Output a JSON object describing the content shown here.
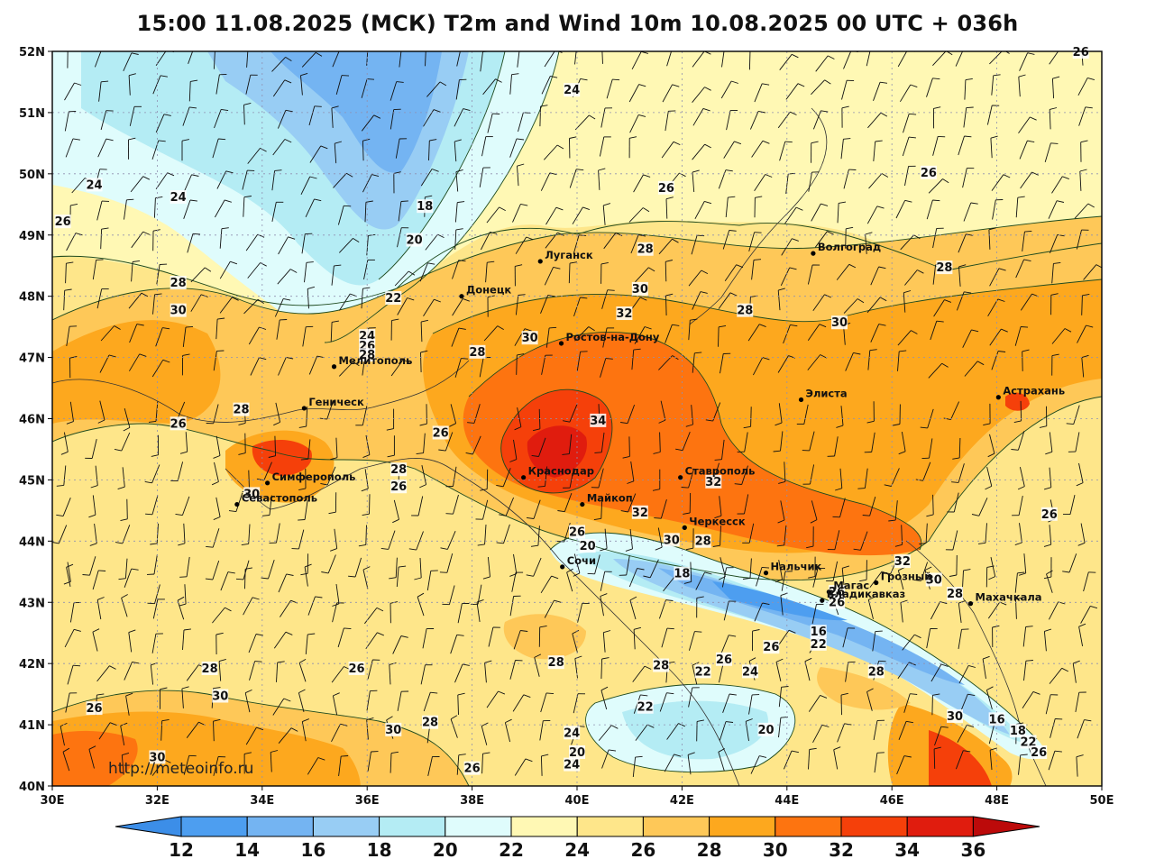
{
  "title": "15:00 11.08.2025 (МСК) T2m and Wind 10m 10.08.2025 00 UTC + 036h",
  "watermark": "http://meteoinfo.ru",
  "axes": {
    "lat_labels": [
      "52N",
      "51N",
      "50N",
      "49N",
      "48N",
      "47N",
      "46N",
      "45N",
      "44N",
      "43N",
      "42N",
      "41N",
      "40N"
    ],
    "lon_labels": [
      "30E",
      "32E",
      "34E",
      "36E",
      "38E",
      "40E",
      "42E",
      "44E",
      "46E",
      "48E",
      "50E"
    ]
  },
  "colorbar": {
    "labels": [
      "12",
      "14",
      "16",
      "18",
      "20",
      "22",
      "24",
      "26",
      "28",
      "30",
      "32",
      "34",
      "36"
    ],
    "colors": [
      "#3c8ee8",
      "#4d9ef0",
      "#74b4f2",
      "#98cdf4",
      "#b4ecf4",
      "#dffcfc",
      "#fff8b4",
      "#fee68a",
      "#fec858",
      "#fda81e",
      "#fd7410",
      "#f5400a",
      "#e01c0e",
      "#bc0a0a"
    ]
  },
  "cities": [
    {
      "name": "Луганск",
      "lon": 39.3,
      "lat": 48.57
    },
    {
      "name": "Донецк",
      "lon": 37.8,
      "lat": 48.0
    },
    {
      "name": "Волгоград",
      "lon": 44.5,
      "lat": 48.7
    },
    {
      "name": "Ростов-на-Дону",
      "lon": 39.7,
      "lat": 47.23
    },
    {
      "name": "Мелитополь",
      "lon": 35.37,
      "lat": 46.85
    },
    {
      "name": "Элиста",
      "lon": 44.27,
      "lat": 46.31
    },
    {
      "name": "Астрахань",
      "lon": 48.03,
      "lat": 46.35
    },
    {
      "name": "Геническ",
      "lon": 34.8,
      "lat": 46.17
    },
    {
      "name": "Краснодар",
      "lon": 38.98,
      "lat": 45.04
    },
    {
      "name": "Ставрополь",
      "lon": 41.97,
      "lat": 45.04
    },
    {
      "name": "Симферополь",
      "lon": 34.1,
      "lat": 44.95
    },
    {
      "name": "Севастополь",
      "lon": 33.52,
      "lat": 44.6
    },
    {
      "name": "Майкоп",
      "lon": 40.1,
      "lat": 44.6
    },
    {
      "name": "Черкесск",
      "lon": 42.05,
      "lat": 44.22
    },
    {
      "name": "Сочи",
      "lon": 39.72,
      "lat": 43.58
    },
    {
      "name": "Нальчик",
      "lon": 43.6,
      "lat": 43.48
    },
    {
      "name": "Магас",
      "lon": 44.8,
      "lat": 43.17
    },
    {
      "name": "Грозный",
      "lon": 45.7,
      "lat": 43.32
    },
    {
      "name": "Владикавказ",
      "lon": 44.67,
      "lat": 43.03
    },
    {
      "name": "Махачкала",
      "lon": 47.5,
      "lat": 42.98
    }
  ],
  "contour_labels": [
    {
      "t": "24",
      "lon": 39.9,
      "lat": 51.35
    },
    {
      "t": "26",
      "lon": 49.6,
      "lat": 51.97
    },
    {
      "t": "26",
      "lon": 46.7,
      "lat": 50.0
    },
    {
      "t": "24",
      "lon": 30.8,
      "lat": 49.8
    },
    {
      "t": "24",
      "lon": 32.4,
      "lat": 49.6
    },
    {
      "t": "26",
      "lon": 30.2,
      "lat": 49.2
    },
    {
      "t": "18",
      "lon": 37.1,
      "lat": 49.45
    },
    {
      "t": "20",
      "lon": 36.9,
      "lat": 48.9
    },
    {
      "t": "26",
      "lon": 41.7,
      "lat": 49.75
    },
    {
      "t": "28",
      "lon": 41.3,
      "lat": 48.75
    },
    {
      "t": "28",
      "lon": 47.0,
      "lat": 48.45
    },
    {
      "t": "22",
      "lon": 36.5,
      "lat": 47.95
    },
    {
      "t": "28",
      "lon": 32.4,
      "lat": 48.2
    },
    {
      "t": "30",
      "lon": 32.4,
      "lat": 47.75
    },
    {
      "t": "30",
      "lon": 41.2,
      "lat": 48.1
    },
    {
      "t": "32",
      "lon": 40.9,
      "lat": 47.7
    },
    {
      "t": "28",
      "lon": 43.2,
      "lat": 47.75
    },
    {
      "t": "30",
      "lon": 45.0,
      "lat": 47.55
    },
    {
      "t": "24",
      "lon": 36.0,
      "lat": 47.33
    },
    {
      "t": "26",
      "lon": 36.0,
      "lat": 47.17
    },
    {
      "t": "28",
      "lon": 36.0,
      "lat": 47.02
    },
    {
      "t": "30",
      "lon": 39.1,
      "lat": 47.3
    },
    {
      "t": "28",
      "lon": 38.1,
      "lat": 47.07
    },
    {
      "t": "28",
      "lon": 33.6,
      "lat": 46.13
    },
    {
      "t": "26",
      "lon": 32.4,
      "lat": 45.9
    },
    {
      "t": "34",
      "lon": 40.4,
      "lat": 45.95
    },
    {
      "t": "26",
      "lon": 37.4,
      "lat": 45.75
    },
    {
      "t": "28",
      "lon": 36.6,
      "lat": 45.15
    },
    {
      "t": "26",
      "lon": 36.6,
      "lat": 44.87
    },
    {
      "t": "30",
      "lon": 33.8,
      "lat": 44.75
    },
    {
      "t": "32",
      "lon": 42.6,
      "lat": 44.95
    },
    {
      "t": "32",
      "lon": 41.2,
      "lat": 44.45
    },
    {
      "t": "26",
      "lon": 40.0,
      "lat": 44.13
    },
    {
      "t": "20",
      "lon": 40.2,
      "lat": 43.9
    },
    {
      "t": "30",
      "lon": 41.8,
      "lat": 44.0
    },
    {
      "t": "28",
      "lon": 42.4,
      "lat": 43.98
    },
    {
      "t": "26",
      "lon": 49.0,
      "lat": 44.42
    },
    {
      "t": "32",
      "lon": 46.2,
      "lat": 43.65
    },
    {
      "t": "18",
      "lon": 42.0,
      "lat": 43.45
    },
    {
      "t": "30",
      "lon": 46.8,
      "lat": 43.35
    },
    {
      "t": "28",
      "lon": 47.2,
      "lat": 43.12
    },
    {
      "t": "26",
      "lon": 44.95,
      "lat": 43.15
    },
    {
      "t": "26",
      "lon": 44.95,
      "lat": 42.98
    },
    {
      "t": "16",
      "lon": 44.6,
      "lat": 42.5
    },
    {
      "t": "22",
      "lon": 44.6,
      "lat": 42.3
    },
    {
      "t": "26",
      "lon": 43.7,
      "lat": 42.25
    },
    {
      "t": "28",
      "lon": 39.6,
      "lat": 42.0
    },
    {
      "t": "28",
      "lon": 41.6,
      "lat": 41.95
    },
    {
      "t": "22",
      "lon": 42.4,
      "lat": 41.85
    },
    {
      "t": "26",
      "lon": 42.8,
      "lat": 42.05
    },
    {
      "t": "24",
      "lon": 43.3,
      "lat": 41.85
    },
    {
      "t": "28",
      "lon": 45.7,
      "lat": 41.85
    },
    {
      "t": "26",
      "lon": 35.8,
      "lat": 41.9
    },
    {
      "t": "28",
      "lon": 33.0,
      "lat": 41.9
    },
    {
      "t": "30",
      "lon": 33.2,
      "lat": 41.45
    },
    {
      "t": "26",
      "lon": 30.8,
      "lat": 41.25
    },
    {
      "t": "22",
      "lon": 41.3,
      "lat": 41.27
    },
    {
      "t": "30",
      "lon": 36.5,
      "lat": 40.9
    },
    {
      "t": "28",
      "lon": 37.2,
      "lat": 41.02
    },
    {
      "t": "24",
      "lon": 39.9,
      "lat": 40.85
    },
    {
      "t": "20",
      "lon": 43.6,
      "lat": 40.9
    },
    {
      "t": "30",
      "lon": 47.2,
      "lat": 41.12
    },
    {
      "t": "16",
      "lon": 48.0,
      "lat": 41.07
    },
    {
      "t": "18",
      "lon": 48.4,
      "lat": 40.88
    },
    {
      "t": "22",
      "lon": 48.6,
      "lat": 40.7
    },
    {
      "t": "26",
      "lon": 48.8,
      "lat": 40.53
    },
    {
      "t": "20",
      "lon": 40.0,
      "lat": 40.53
    },
    {
      "t": "24",
      "lon": 39.9,
      "lat": 40.33
    },
    {
      "t": "30",
      "lon": 32.0,
      "lat": 40.45
    },
    {
      "t": "26",
      "lon": 38.0,
      "lat": 40.27
    }
  ]
}
